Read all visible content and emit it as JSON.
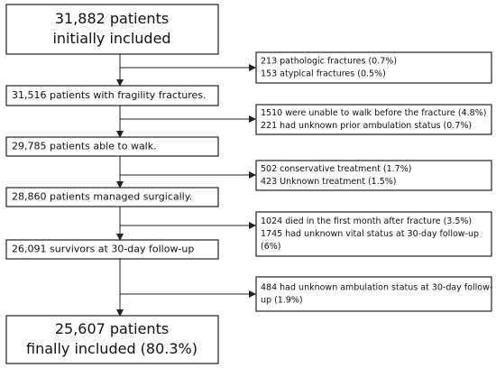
{
  "main_steps": [
    {
      "lines": [
        "31,882 patients",
        "initially included"
      ]
    },
    {
      "lines": [
        "31,516 patients with fragility fractures."
      ]
    },
    {
      "lines": [
        "29,785 patients able to walk."
      ]
    },
    {
      "lines": [
        "28,860 patients managed surgically."
      ]
    },
    {
      "lines": [
        "26,091 survivors at 30-day follow-up"
      ]
    },
    {
      "lines": [
        "25,607 patients",
        "finally included (80.3%)"
      ]
    }
  ],
  "exclusions": [
    {
      "lines": [
        "213 pathologic fractures (0.7%)",
        "153 atypical fractures (0.5%)"
      ]
    },
    {
      "lines": [
        "1510 were unable to walk before the fracture (4.8%)",
        "221 had unknown prior ambulation status (0.7%)"
      ]
    },
    {
      "lines": [
        "502 conservative treatment (1.7%)",
        "423 Unknown treatment (1.5%)"
      ]
    },
    {
      "lines": [
        "1024 died in the first month after fracture (3.5%)",
        "1745 had unknown vital status at 30-day follow-up",
        "(6%)"
      ]
    },
    {
      "lines": [
        "484 had unknown ambulation status at 30-day follow-",
        "up (1.9%)"
      ]
    }
  ]
}
